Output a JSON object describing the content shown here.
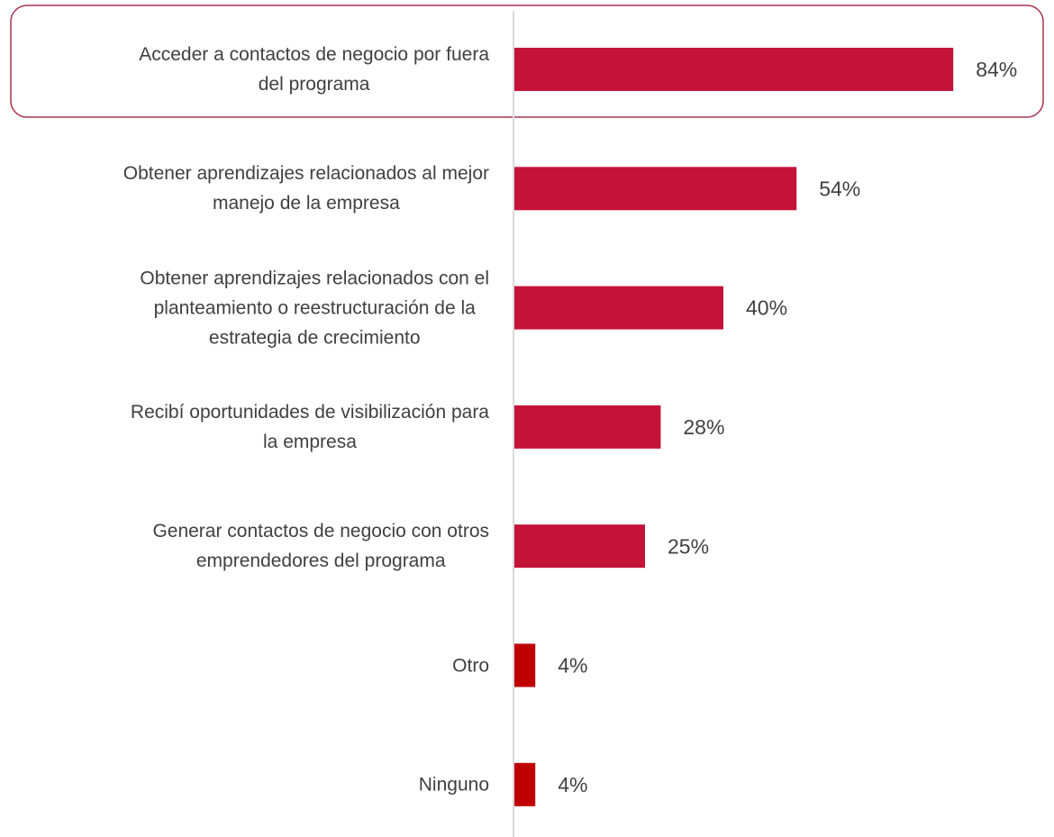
{
  "chart_data": {
    "type": "bar",
    "orientation": "horizontal",
    "categories": [
      [
        "Acceder a contactos de negocio por fuera",
        "del programa"
      ],
      [
        "Obtener aprendizajes relacionados al mejor",
        "manejo de la empresa"
      ],
      [
        "Obtener aprendizajes relacionados con el",
        "planteamiento o reestructuración de la",
        "estrategia de crecimiento"
      ],
      [
        "Recibí oportunidades de visibilización para",
        "la empresa"
      ],
      [
        "Generar contactos de negocio con otros",
        "emprendedores del programa"
      ],
      [
        "Otro"
      ],
      [
        "Ninguno"
      ]
    ],
    "values": [
      84,
      54,
      40,
      28,
      25,
      4,
      4
    ],
    "value_labels": [
      "84%",
      "54%",
      "40%",
      "28%",
      "25%",
      "4%",
      "4%"
    ],
    "colors": [
      "#c41239",
      "#c41239",
      "#c41239",
      "#c41239",
      "#c41239",
      "#c00000",
      "#c00000"
    ]
  }
}
